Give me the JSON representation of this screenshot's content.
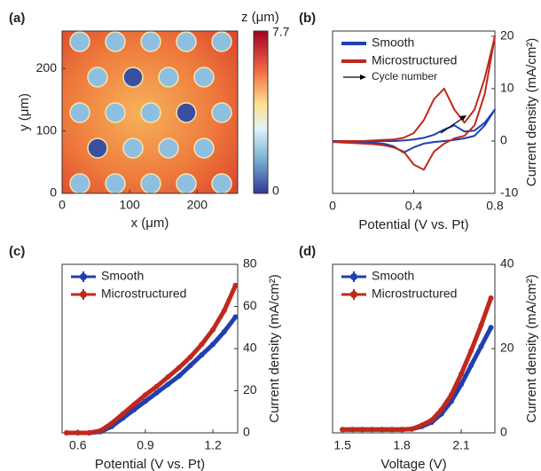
{
  "chart_data": [
    {
      "type": "heatmap",
      "panel_label": "(a)",
      "xlabel": "x (μm)",
      "ylabel": "y (μm)",
      "colorbar_label": "z (μm)",
      "xlim": [
        0,
        260
      ],
      "ylim": [
        0,
        260
      ],
      "xticks": [
        0,
        100,
        200
      ],
      "yticks": [
        0,
        100,
        200
      ],
      "clim": [
        0,
        7.7
      ],
      "cticks": [
        0,
        7.7
      ]
    },
    {
      "type": "line",
      "panel_label": "(b)",
      "xlabel": "Potential (V vs. Pt)",
      "ylabel": "Current density (mA/cm²)",
      "annotation": "Cycle number",
      "xlim": [
        0,
        0.8
      ],
      "ylim": [
        -10,
        21
      ],
      "xticks": [
        0,
        0.4,
        0.8
      ],
      "yticks": [
        -10,
        0,
        10,
        20
      ],
      "x": [
        0,
        0.05,
        0.1,
        0.15,
        0.2,
        0.25,
        0.3,
        0.35,
        0.4,
        0.45,
        0.5,
        0.55,
        0.6,
        0.65,
        0.7,
        0.75,
        0.8,
        0.75,
        0.7,
        0.65,
        0.6,
        0.55,
        0.5,
        0.45,
        0.4,
        0.35,
        0.3,
        0.25,
        0.2,
        0.15,
        0.1,
        0.05,
        0
      ],
      "series": [
        {
          "name": "Smooth",
          "color": "#1f3fb0",
          "values": [
            0,
            0,
            0,
            0,
            0,
            0,
            0,
            0.1,
            0.3,
            0.6,
            1.2,
            2.2,
            3,
            1.8,
            2,
            3.5,
            6,
            3,
            1,
            0.5,
            0.2,
            0,
            -0.2,
            -0.5,
            -1.2,
            -2.2,
            -1,
            -0.5,
            -0.3,
            -0.2,
            -0.1,
            -0.1,
            0
          ]
        },
        {
          "name": "Microstructured",
          "color": "#c0281c",
          "values": [
            -0.2,
            0,
            0,
            0,
            0.1,
            0.2,
            0.3,
            0.6,
            1.5,
            4,
            8,
            10,
            6,
            3.5,
            6,
            12,
            20,
            9,
            3,
            1,
            0.5,
            -0.5,
            -2,
            -5.5,
            -4.5,
            -2,
            -1.2,
            -0.8,
            -0.6,
            -0.5,
            -0.4,
            -0.3,
            -0.2
          ]
        }
      ]
    },
    {
      "type": "line",
      "panel_label": "(c)",
      "xlabel": "Potential (V vs. Pt)",
      "ylabel": "Current density (mA/cm²)",
      "markers": true,
      "xlim": [
        0.53,
        1.31
      ],
      "ylim": [
        0,
        80
      ],
      "xticks": [
        0.6,
        0.9,
        1.2
      ],
      "yticks": [
        0,
        20,
        40,
        60,
        80
      ],
      "x": [
        0.55,
        0.6,
        0.65,
        0.7,
        0.75,
        0.8,
        0.85,
        0.9,
        0.95,
        1.0,
        1.05,
        1.1,
        1.15,
        1.2,
        1.25,
        1.3
      ],
      "series": [
        {
          "name": "Smooth",
          "color": "#1f3fb0",
          "values": [
            0,
            0,
            0,
            0.5,
            3,
            7,
            11,
            15,
            19,
            23,
            27,
            32,
            37,
            42,
            48,
            55
          ]
        },
        {
          "name": "Microstructured",
          "color": "#c0281c",
          "values": [
            0,
            0,
            0,
            1,
            4.5,
            9,
            13.5,
            18,
            22,
            26.5,
            31,
            36,
            42,
            49,
            58,
            70
          ]
        }
      ]
    },
    {
      "type": "line",
      "panel_label": "(d)",
      "xlabel": "Voltage (V)",
      "ylabel": "Current density (mA/cm²)",
      "markers": true,
      "xlim": [
        1.45,
        2.27
      ],
      "ylim": [
        0,
        40
      ],
      "xticks": [
        1.5,
        1.8,
        2.1
      ],
      "yticks": [
        0,
        20,
        40
      ],
      "x": [
        1.5,
        1.55,
        1.6,
        1.65,
        1.7,
        1.75,
        1.8,
        1.85,
        1.9,
        1.95,
        2.0,
        2.05,
        2.1,
        2.15,
        2.2,
        2.25
      ],
      "series": [
        {
          "name": "Smooth",
          "color": "#1f3fb0",
          "values": [
            0.8,
            0.8,
            0.8,
            0.8,
            0.8,
            0.8,
            0.8,
            0.9,
            1.5,
            2.5,
            4.5,
            7.5,
            11.5,
            16,
            20.5,
            25
          ]
        },
        {
          "name": "Microstructured",
          "color": "#c0281c",
          "values": [
            0.8,
            0.8,
            0.8,
            0.8,
            0.8,
            0.8,
            0.8,
            0.9,
            1.8,
            3,
            5.5,
            9,
            14,
            19.5,
            25.5,
            32
          ]
        }
      ]
    }
  ]
}
